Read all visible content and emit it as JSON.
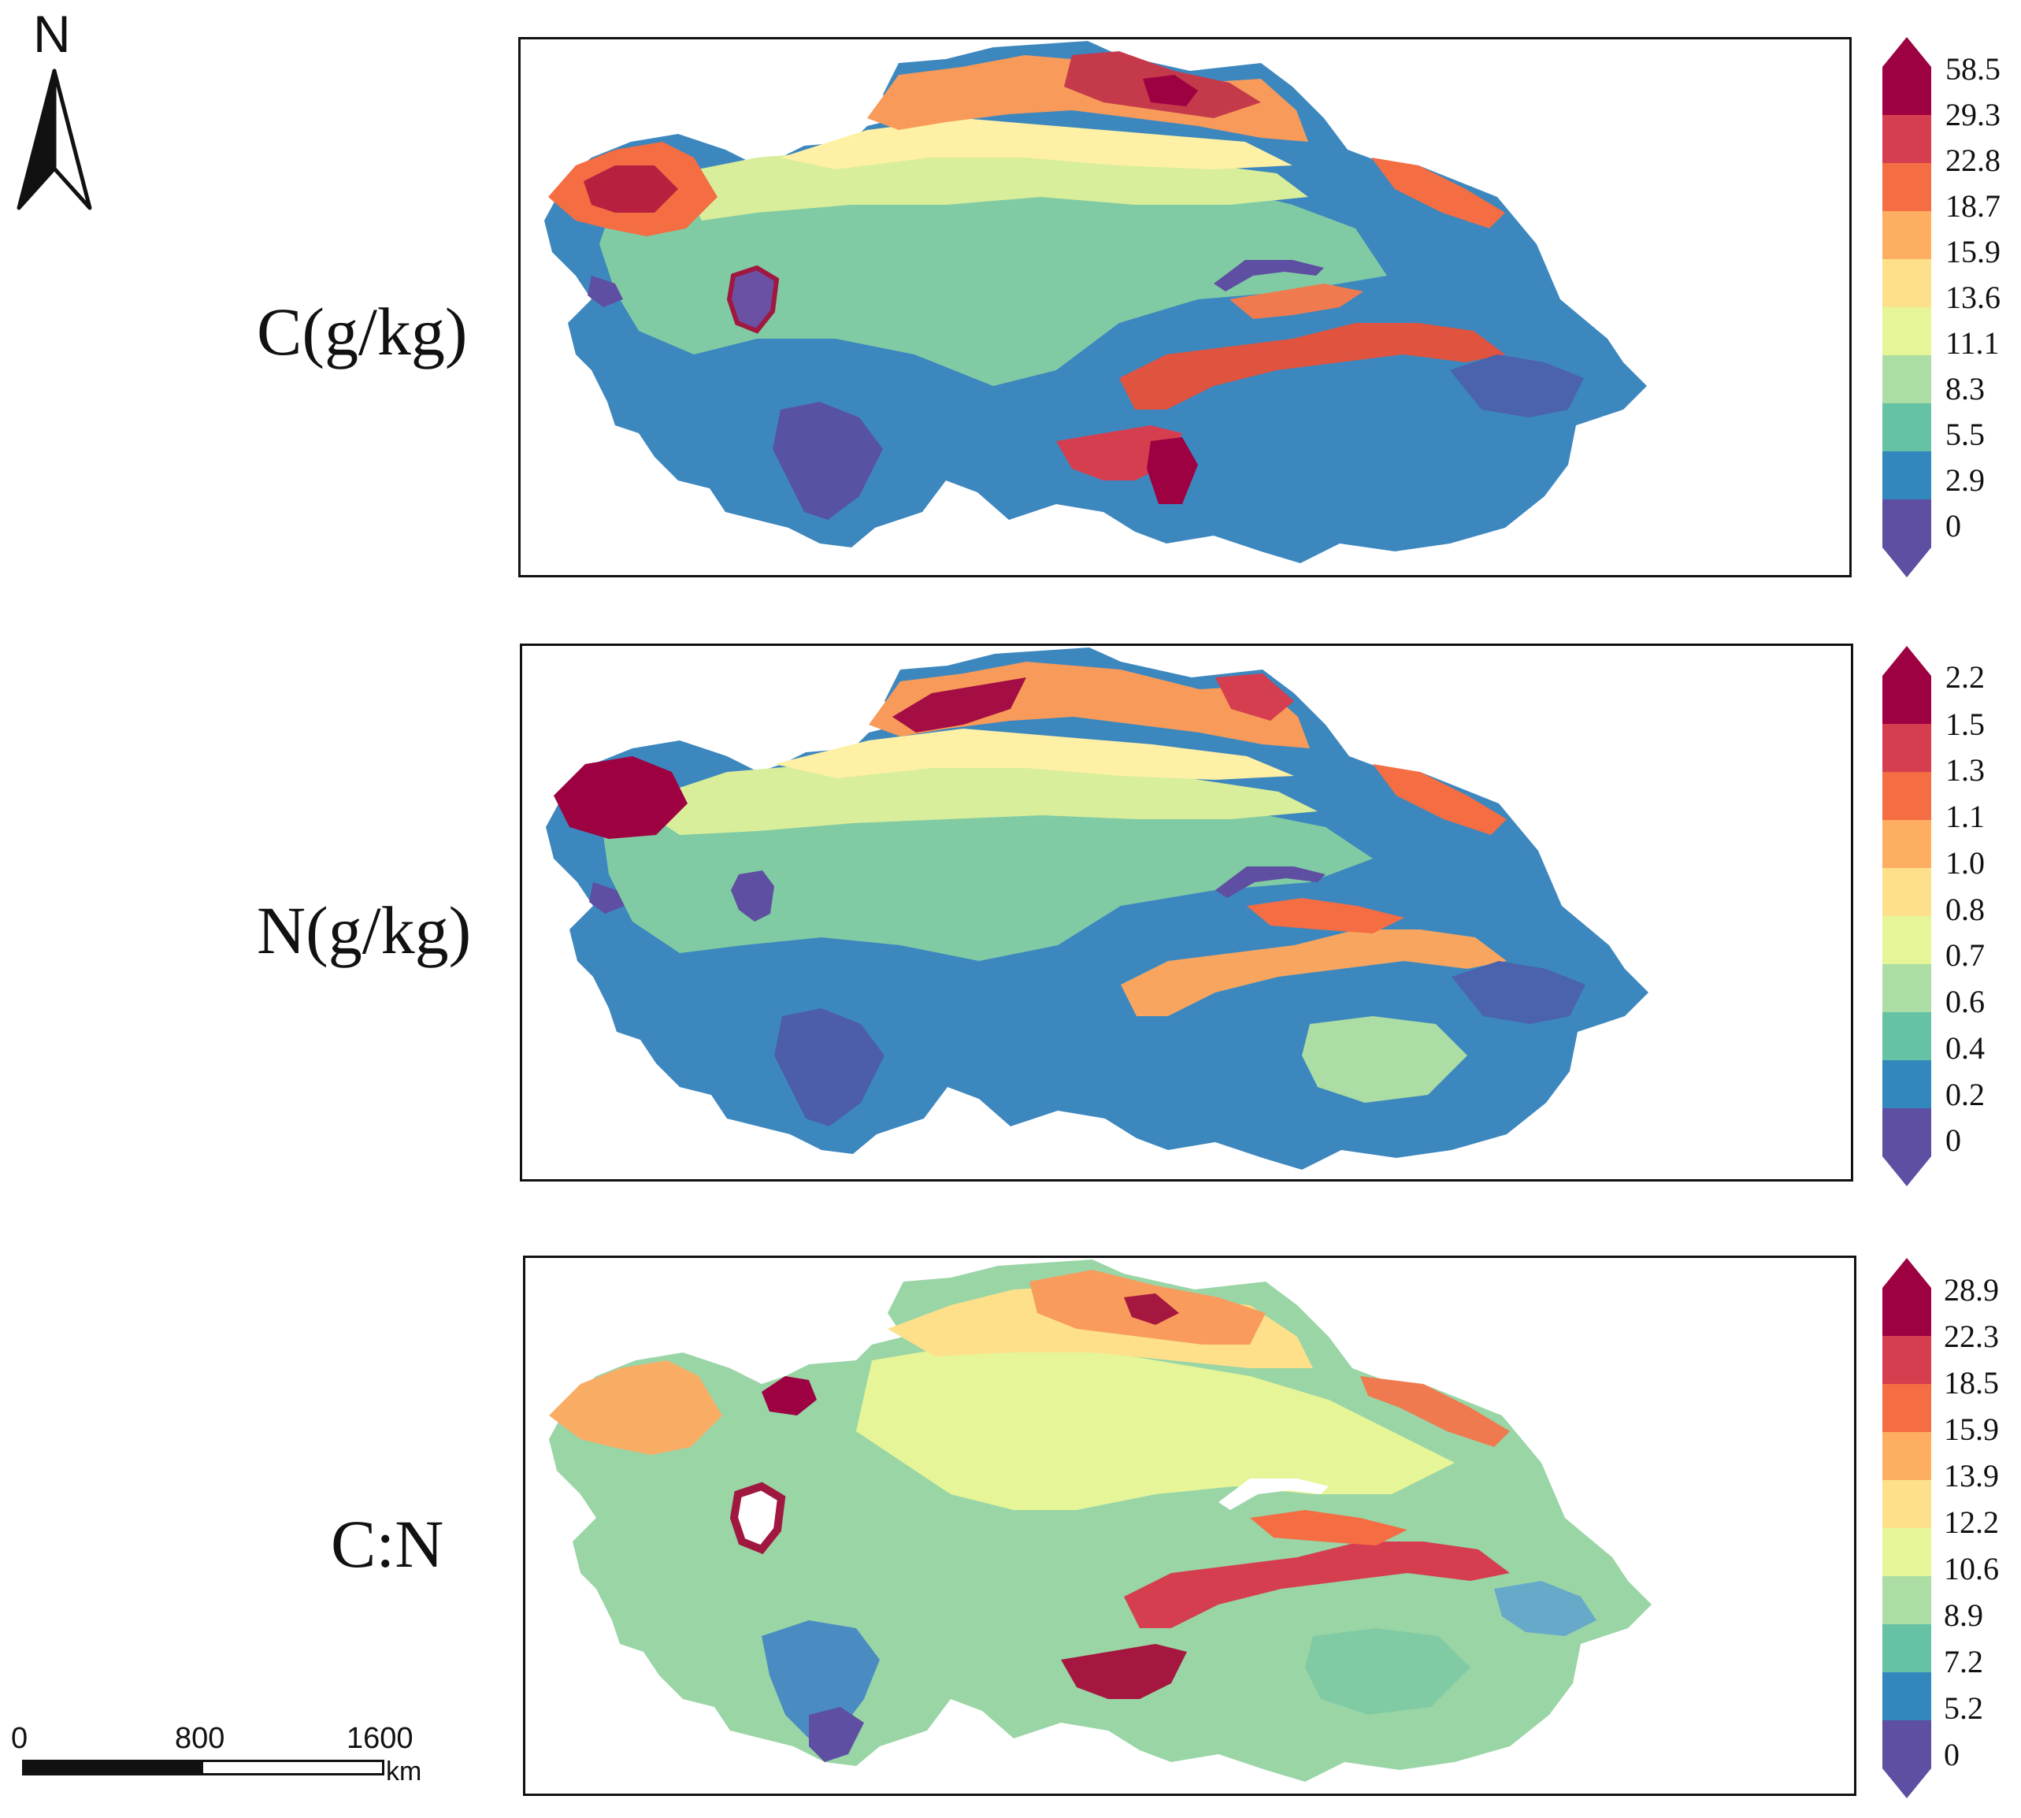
{
  "north": {
    "letter": "N",
    "icon": "north-arrow-icon"
  },
  "scale": {
    "ticks": [
      "0",
      "800",
      "1600"
    ],
    "unit": "km"
  },
  "palette": [
    "#5e4fa2",
    "#3288bd",
    "#66c2a5",
    "#abdda4",
    "#e6f598",
    "#fee08b",
    "#fdae61",
    "#f46d43",
    "#d53e4f",
    "#9e0142"
  ],
  "panels": [
    {
      "label": "C(g/kg)",
      "ticks": [
        "58.5",
        "29.3",
        "22.8",
        "18.7",
        "15.9",
        "13.6",
        "11.1",
        "8.3",
        "5.5",
        "2.9",
        "0"
      ]
    },
    {
      "label": "N(g/kg)",
      "ticks": [
        "2.2",
        "1.5",
        "1.3",
        "1.1",
        "1.0",
        "0.8",
        "0.7",
        "0.6",
        "0.4",
        "0.2",
        "0"
      ]
    },
    {
      "label": "C:N",
      "ticks": [
        "28.9",
        "22.3",
        "18.5",
        "15.9",
        "13.9",
        "12.2",
        "10.6",
        "8.9",
        "7.2",
        "5.2",
        "0"
      ]
    }
  ]
}
